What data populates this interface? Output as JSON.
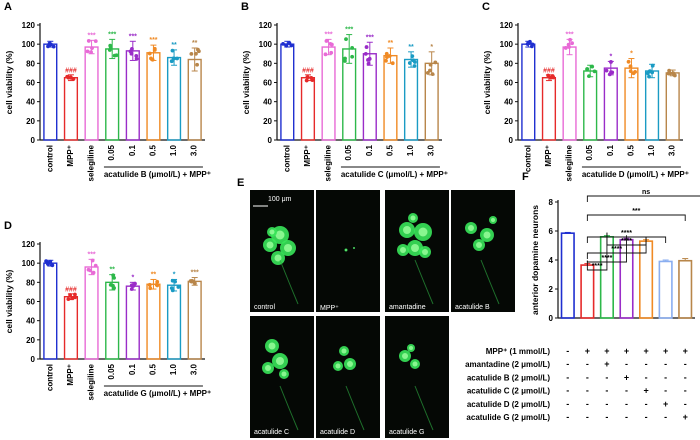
{
  "colors": {
    "control": "#1f2fd0",
    "mpp": "#e62a2a",
    "selegiline": "#e86ad6",
    "c005": "#2db84a",
    "c01": "#9a2cc8",
    "c05": "#f08a24",
    "c10": "#1a9bc4",
    "c30": "#b8864a",
    "sig_pink": "#e86ad6"
  },
  "category_keys": [
    "control",
    "mpp",
    "selegiline",
    "c005",
    "c01",
    "c05",
    "c10",
    "c30"
  ],
  "chart_data": [
    {
      "panel": "A",
      "type": "bar",
      "categories": [
        "control",
        "MPP⁺",
        "selegiline",
        "0.05",
        "0.1",
        "0.5",
        "1.0",
        "3.0"
      ],
      "values": [
        100,
        65,
        97,
        95,
        93,
        91,
        86,
        84
      ],
      "errors": [
        3,
        3,
        7,
        10,
        10,
        8,
        8,
        12
      ],
      "significance": [
        "",
        "###",
        "***",
        "***",
        "***",
        "***",
        "**",
        "**"
      ],
      "ylabel": "cell viability (%)",
      "ylim": [
        0,
        120
      ],
      "yticks": [
        "0",
        "20",
        "40",
        "60",
        "80",
        "100",
        "120"
      ],
      "group_label": "acatulide B (μmol/L) + MPP⁺"
    },
    {
      "panel": "B",
      "type": "bar",
      "categories": [
        "control",
        "MPP⁺",
        "selegiline",
        "0.05",
        "0.1",
        "0.5",
        "1.0",
        "3.0"
      ],
      "values": [
        100,
        65,
        97,
        95,
        90,
        88,
        84,
        80
      ],
      "errors": [
        3,
        3,
        8,
        15,
        12,
        8,
        8,
        12
      ],
      "significance": [
        "",
        "###",
        "***",
        "***",
        "***",
        "**",
        "**",
        "*"
      ],
      "ylabel": "cell viability (%)",
      "ylim": [
        0,
        120
      ],
      "yticks": [
        "0",
        "20",
        "40",
        "60",
        "80",
        "100",
        "120"
      ],
      "group_label": "acatulide C (μmol/L) + MPP⁺"
    },
    {
      "panel": "C",
      "type": "bar",
      "categories": [
        "control",
        "MPP⁺",
        "selegiline",
        "0.05",
        "0.1",
        "0.5",
        "1.0",
        "3.0"
      ],
      "values": [
        100,
        65,
        97,
        72,
        75,
        75,
        72,
        70
      ],
      "errors": [
        3,
        3,
        8,
        6,
        7,
        10,
        7,
        3
      ],
      "significance": [
        "",
        "###",
        "***",
        "",
        "*",
        "*",
        "",
        ""
      ],
      "ylabel": "cell viability (%)",
      "ylim": [
        0,
        120
      ],
      "yticks": [
        "0",
        "20",
        "40",
        "60",
        "80",
        "100",
        "120"
      ],
      "group_label": "acatulide D (μmol/L) + MPP⁺"
    },
    {
      "panel": "D",
      "type": "bar",
      "categories": [
        "control",
        "MPP⁺",
        "selegiline",
        "0.05",
        "0.1",
        "0.5",
        "1.0",
        "3.0"
      ],
      "values": [
        100,
        65,
        96,
        80,
        76,
        78,
        77,
        81
      ],
      "errors": [
        3,
        3,
        8,
        8,
        4,
        5,
        6,
        4
      ],
      "significance": [
        "",
        "###",
        "***",
        "**",
        "*",
        "**",
        "*",
        "***"
      ],
      "ylabel": "cell viability (%)",
      "ylim": [
        0,
        120
      ],
      "yticks": [
        "0",
        "20",
        "40",
        "60",
        "80",
        "100",
        "120"
      ],
      "group_label": "acatulide G (μmol/L) + MPP⁺"
    },
    {
      "panel": "F",
      "type": "bar",
      "categories": [
        "1",
        "2",
        "3",
        "4",
        "5",
        "6",
        "7"
      ],
      "values": [
        5.85,
        3.65,
        5.6,
        5.4,
        5.3,
        3.9,
        3.95
      ],
      "errors": [
        0.05,
        0.1,
        0.08,
        0.1,
        0.1,
        0.1,
        0.15
      ],
      "ylabel": "anterior dopamine neurons",
      "ylim": [
        0,
        8
      ],
      "yticks": [
        "0",
        "2",
        "4",
        "6",
        "8"
      ],
      "comparisons": [
        {
          "from": 1,
          "to": 2,
          "label": "****"
        },
        {
          "from": 1,
          "to": 3,
          "label": "****"
        },
        {
          "from": 1,
          "to": 4,
          "label": "****"
        },
        {
          "from": 2,
          "to": 4,
          "label": "****"
        },
        {
          "from": 1,
          "to": 5,
          "label": "****"
        },
        {
          "from": 1,
          "to": 6,
          "label": "***"
        },
        {
          "from": 1,
          "to": 7,
          "label": "ns"
        }
      ],
      "colors": [
        "#1f2fd0",
        "#e62a2a",
        "#2db84a",
        "#9a2cc8",
        "#f08a24",
        "#8aaef0",
        "#b8864a"
      ],
      "treatment_table": [
        {
          "label": "MPP⁺ (1 mmol/L)",
          "signs": [
            "-",
            "+",
            "+",
            "+",
            "+",
            "+",
            "+"
          ]
        },
        {
          "label": "amantadine (2 μmol/L)",
          "signs": [
            "-",
            "-",
            "+",
            "-",
            "-",
            "-",
            "-"
          ]
        },
        {
          "label": "acatulide B (2 μmol/L)",
          "signs": [
            "-",
            "-",
            "-",
            "+",
            "-",
            "-",
            "-"
          ]
        },
        {
          "label": "acatulide C (2 μmol/L)",
          "signs": [
            "-",
            "-",
            "-",
            "-",
            "+",
            "-",
            "-"
          ]
        },
        {
          "label": "acatulide D (2 μmol/L)",
          "signs": [
            "-",
            "-",
            "-",
            "-",
            "-",
            "+",
            "-"
          ]
        },
        {
          "label": "acatulide G (2 μmol/L)",
          "signs": [
            "-",
            "-",
            "-",
            "-",
            "-",
            "-",
            "+"
          ]
        }
      ]
    }
  ],
  "panel_e": {
    "letter": "E",
    "scale_label": "100 μm",
    "images": [
      "control",
      "MPP⁺",
      "amantadine",
      "acatulide B",
      "acatulide C",
      "acatulide D",
      "acatulide G"
    ]
  },
  "panel_letters": [
    "A",
    "B",
    "C",
    "D",
    "F"
  ]
}
